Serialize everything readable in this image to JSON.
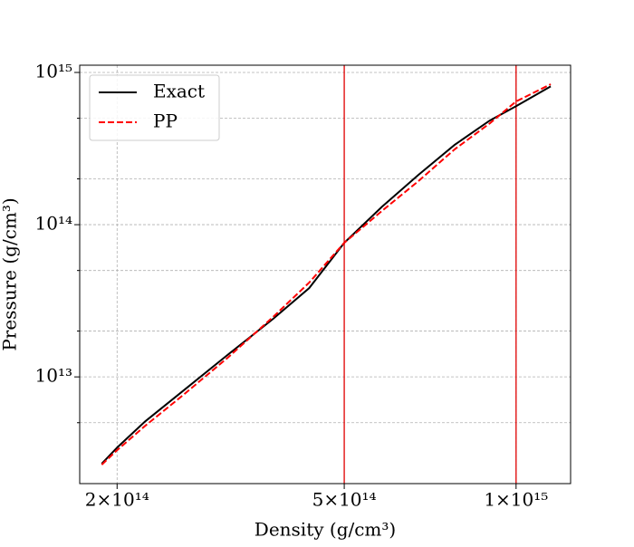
{
  "chart_data": {
    "type": "line",
    "xlabel": "Density (g/cm³)",
    "ylabel": "Pressure (g/cm³)",
    "xscale": "log",
    "yscale": "log",
    "xlim": [
      172000000000000.0,
      1246000000000000.0
    ],
    "ylim": [
      1990000000000.0,
      1116000000000000.0
    ],
    "xticks": [
      {
        "value": 200000000000000.0,
        "label": "2×10¹⁴"
      },
      {
        "value": 500000000000000.0,
        "label": "5×10¹⁴"
      },
      {
        "value": 1000000000000000.0,
        "label": "1×10¹⁵"
      }
    ],
    "yticks": [
      {
        "value": 10000000000000.0,
        "label": "10¹³"
      },
      {
        "value": 100000000000000.0,
        "label": "10¹⁴"
      },
      {
        "value": 1000000000000000.0,
        "label": "10¹⁵"
      }
    ],
    "yminor_ticks": [
      5000000000000.0,
      20000000000000.0,
      50000000000000.0,
      200000000000000.0,
      500000000000000.0
    ],
    "grid": true,
    "legend": "upper left",
    "vlines": [
      {
        "x": 500000000000000.0,
        "color": "#e00000"
      },
      {
        "x": 1000000000000000.0,
        "color": "#e00000"
      }
    ],
    "x": [
      188000000000000.0,
      200000000000000.0,
      224000000000000.0,
      260000000000000.0,
      312000000000000.0,
      375000000000000.0,
      434000000000000.0,
      500000000000000.0,
      582000000000000.0,
      674000000000000.0,
      780000000000000.0,
      900000000000000.0,
      1000000000000000.0,
      1150000000000000.0
    ],
    "series": [
      {
        "name": "Exact",
        "color": "#000000",
        "dash": "solid",
        "values": [
          2690000000000.0,
          3430000000000.0,
          5100000000000.0,
          8000000000000.0,
          13900000000000.0,
          24000000000000.0,
          38300000000000.0,
          76000000000000.0,
          131000000000000.0,
          212000000000000.0,
          334000000000000.0,
          484000000000000.0,
          600000000000000.0,
          810000000000000.0
        ]
      },
      {
        "name": "PP",
        "color": "#ff0000",
        "dash": "dashed",
        "values": [
          2650000000000.0,
          3300000000000.0,
          4770000000000.0,
          7500000000000.0,
          13300000000000.0,
          24700000000000.0,
          41600000000000.0,
          76000000000000.0,
          123000000000000.0,
          193000000000000.0,
          312000000000000.0,
          464000000000000.0,
          645000000000000.0,
          837000000000000.0
        ]
      }
    ]
  }
}
